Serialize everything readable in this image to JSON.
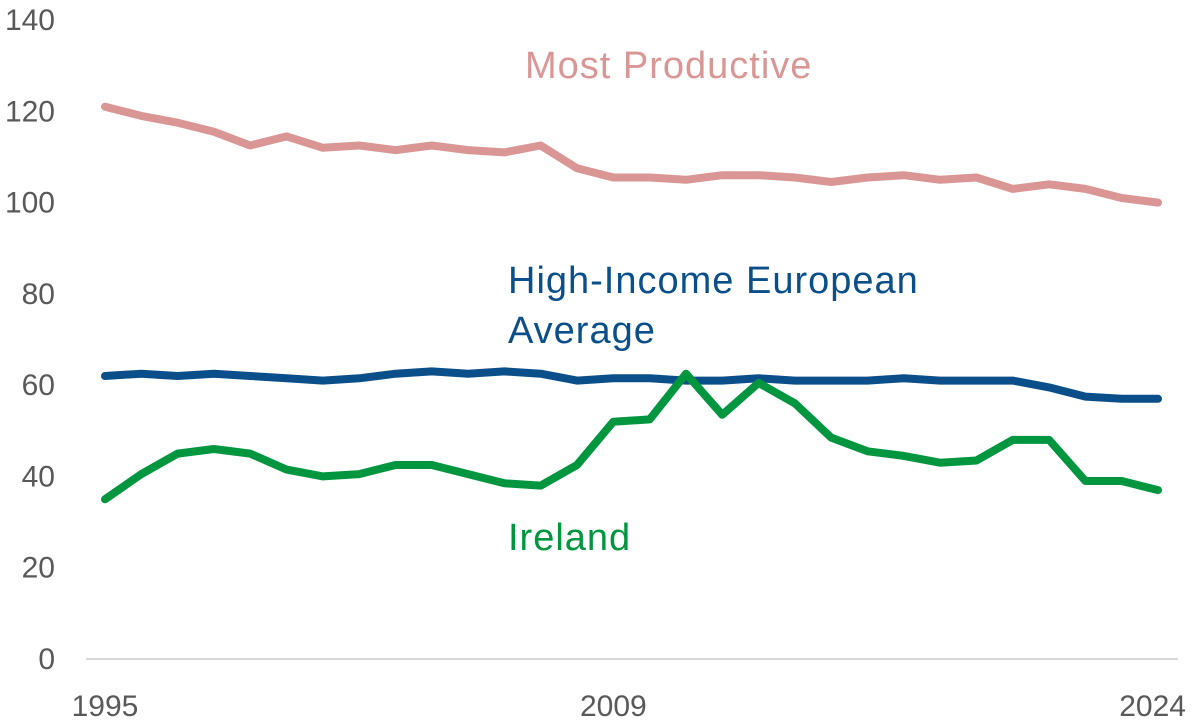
{
  "chart_data": {
    "type": "line",
    "title": "",
    "xlabel": "",
    "ylabel": "",
    "ylim": [
      0,
      140
    ],
    "yticks": [
      0,
      20,
      40,
      60,
      80,
      100,
      120,
      140
    ],
    "xlim": [
      1995,
      2024
    ],
    "xtick_labels": [
      "1995",
      "2009",
      "2024"
    ],
    "grid": false,
    "x": [
      1995,
      1996,
      1997,
      1998,
      1999,
      2000,
      2001,
      2002,
      2003,
      2004,
      2005,
      2006,
      2007,
      2008,
      2009,
      2010,
      2011,
      2012,
      2013,
      2014,
      2015,
      2016,
      2017,
      2018,
      2019,
      2020,
      2021,
      2022,
      2023,
      2024
    ],
    "series": [
      {
        "name": "Most Productive",
        "color": "#d99694",
        "values": [
          121,
          119,
          117.5,
          115.5,
          112.5,
          114.5,
          112,
          112.5,
          111.5,
          112.5,
          111.5,
          111,
          112.5,
          107.5,
          105.5,
          105.5,
          105,
          106,
          106,
          105.5,
          104.5,
          105.5,
          106,
          105,
          105.5,
          103,
          104,
          103,
          101,
          100
        ]
      },
      {
        "name": "High-Income European Average",
        "name_lines": [
          "High-Income European",
          "Average"
        ],
        "color": "#0b4f8a",
        "values": [
          62,
          62.5,
          62,
          62.5,
          62,
          61.5,
          61,
          61.5,
          62.5,
          63,
          62.5,
          63,
          62.5,
          61,
          61.5,
          61.5,
          61,
          61,
          61.5,
          61,
          61,
          61,
          61.5,
          61,
          61,
          61,
          59.5,
          57.5,
          57,
          57
        ]
      },
      {
        "name": "Ireland",
        "color": "#00963f",
        "values": [
          35,
          40.5,
          45,
          46,
          45,
          41.5,
          40,
          40.5,
          42.5,
          42.5,
          40.5,
          38.5,
          38,
          42.5,
          52,
          52.5,
          62.5,
          53.5,
          60.5,
          56,
          48.5,
          45.5,
          44.5,
          43,
          43.5,
          48,
          48,
          39,
          39,
          37
        ]
      }
    ]
  }
}
